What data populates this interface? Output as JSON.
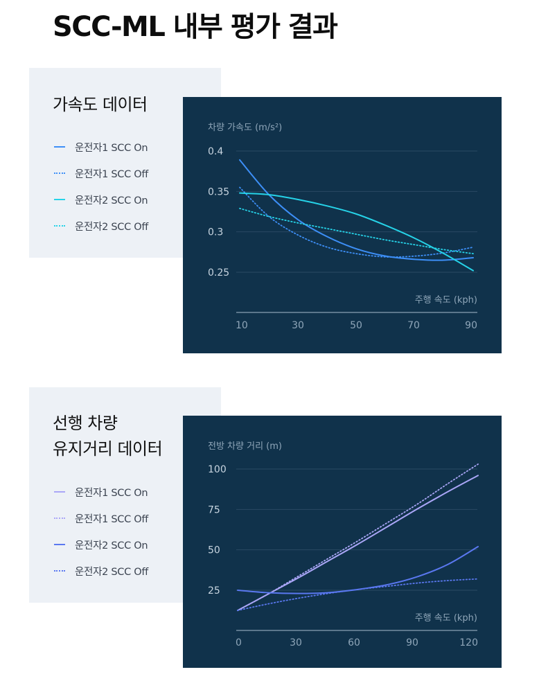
{
  "page_title": "SCC-ML 내부 평가 결과",
  "cards": [
    {
      "title_lines": [
        "가속도 데이터"
      ],
      "legend": [
        {
          "label": "운전자1 SCC On",
          "color": "#3d8ff7",
          "dash": "solid"
        },
        {
          "label": "운전자1 SCC Off",
          "color": "#3d8ff7",
          "dash": "dotted"
        },
        {
          "label": "운전자2 SCC On",
          "color": "#26d3e8",
          "dash": "solid"
        },
        {
          "label": "운전자2 SCC Off",
          "color": "#26d3e8",
          "dash": "dotted"
        }
      ]
    },
    {
      "title_lines": [
        "선행 차량",
        "유지거리 데이터"
      ],
      "legend": [
        {
          "label": "운전자1 SCC On",
          "color": "#aaa6f7",
          "dash": "solid"
        },
        {
          "label": "운전자1 SCC Off",
          "color": "#aaa6f7",
          "dash": "dotted"
        },
        {
          "label": "운전자2 SCC On",
          "color": "#5a78f0",
          "dash": "solid"
        },
        {
          "label": "운전자2 SCC Off",
          "color": "#5a78f0",
          "dash": "dotted"
        }
      ]
    }
  ],
  "chart_data": [
    {
      "type": "line",
      "title": "",
      "ylabel": "차량 가속도 (m/s²)",
      "xlabel": "주행 속도 (kph)",
      "xlim": [
        10,
        90
      ],
      "ylim": [
        0.2,
        0.4
      ],
      "x_ticks": [
        10,
        30,
        50,
        70,
        90
      ],
      "y_ticks": [
        0.4,
        0.35,
        0.3,
        0.25
      ],
      "y_tick_labels": [
        "0.4",
        "0.35",
        "0.3",
        "0.25"
      ],
      "grid": true,
      "x": [
        10,
        20,
        30,
        40,
        50,
        60,
        70,
        80,
        90
      ],
      "series": [
        {
          "name": "운전자1 SCC On",
          "color": "#3d8ff7",
          "dash": "solid",
          "values": [
            0.389,
            0.346,
            0.315,
            0.294,
            0.279,
            0.27,
            0.266,
            0.265,
            0.268
          ]
        },
        {
          "name": "운전자1 SCC Off",
          "color": "#3d8ff7",
          "dash": "dotted",
          "values": [
            0.355,
            0.319,
            0.296,
            0.281,
            0.273,
            0.269,
            0.27,
            0.274,
            0.281
          ]
        },
        {
          "name": "운전자2 SCC On",
          "color": "#26d3e8",
          "dash": "solid",
          "values": [
            0.348,
            0.346,
            0.34,
            0.332,
            0.322,
            0.308,
            0.292,
            0.273,
            0.252
          ]
        },
        {
          "name": "운전자2 SCC Off",
          "color": "#26d3e8",
          "dash": "dotted",
          "values": [
            0.329,
            0.319,
            0.311,
            0.304,
            0.297,
            0.29,
            0.284,
            0.278,
            0.273
          ]
        }
      ]
    },
    {
      "type": "line",
      "title": "",
      "ylabel": "전방 차량 거리 (m)",
      "xlabel": "주행 속도 (kph)",
      "xlim": [
        0,
        120
      ],
      "ylim": [
        0,
        100
      ],
      "x_ticks": [
        0,
        30,
        60,
        90,
        120
      ],
      "y_ticks": [
        100,
        75,
        50,
        25
      ],
      "y_tick_labels": [
        "100",
        "75",
        "50",
        "25"
      ],
      "grid": true,
      "x": [
        0,
        15,
        30,
        45,
        60,
        75,
        90,
        105,
        120
      ],
      "series": [
        {
          "name": "운전자1 SCC On",
          "color": "#aaa6f7",
          "dash": "solid",
          "values": [
            12.5,
            22.5,
            32.5,
            43,
            53.5,
            64.5,
            75.5,
            86,
            96
          ]
        },
        {
          "name": "운전자1 SCC Off",
          "color": "#aaa6f7",
          "dash": "dotted",
          "values": [
            12.5,
            22.5,
            33.5,
            44.5,
            55.5,
            67,
            78.5,
            91,
            103
          ]
        },
        {
          "name": "운전자2 SCC On",
          "color": "#5a78f0",
          "dash": "solid",
          "values": [
            25,
            23.5,
            23,
            23.5,
            25.5,
            28.5,
            33.5,
            41,
            52
          ]
        },
        {
          "name": "운전자2 SCC Off",
          "color": "#5a78f0",
          "dash": "dotted",
          "values": [
            12.5,
            16.5,
            20,
            23,
            25.5,
            27.5,
            29.5,
            31,
            32
          ]
        }
      ]
    }
  ]
}
